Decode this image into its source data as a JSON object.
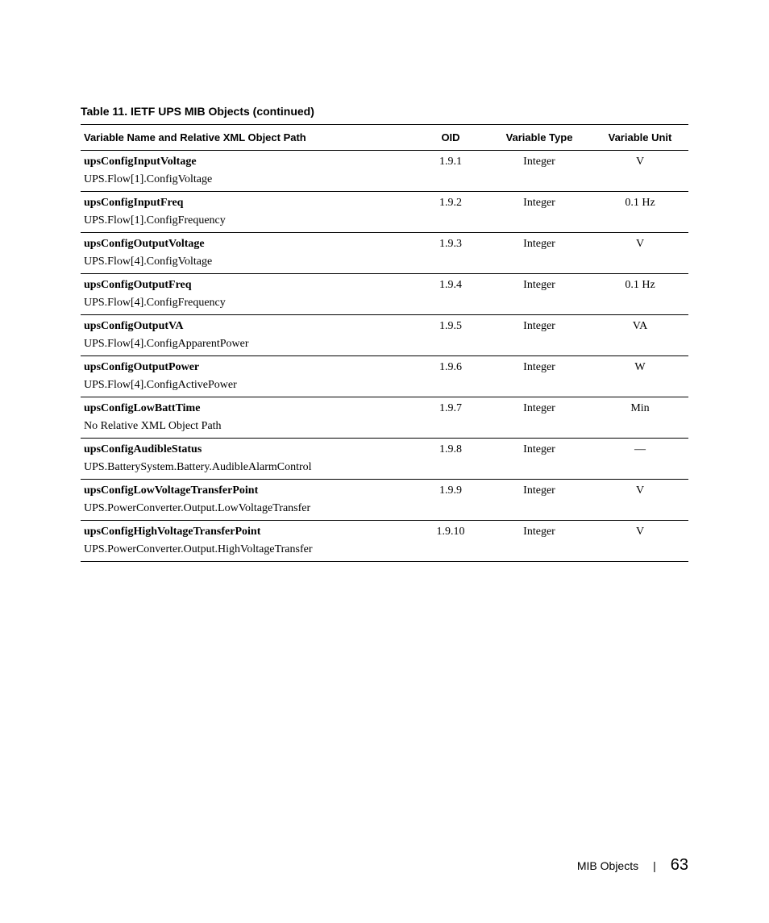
{
  "caption": "Table 11. IETF UPS MIB Objects (continued)",
  "headers": {
    "name": "Variable Name and Relative XML Object Path",
    "oid": "OID",
    "type": "Variable Type",
    "unit": "Variable Unit"
  },
  "rows": [
    {
      "name": "upsConfigInputVoltage",
      "path": "UPS.Flow[1].ConfigVoltage",
      "oid": "1.9.1",
      "type": "Integer",
      "unit": "V"
    },
    {
      "name": "upsConfigInputFreq",
      "path": "UPS.Flow[1].ConfigFrequency",
      "oid": "1.9.2",
      "type": "Integer",
      "unit": "0.1 Hz"
    },
    {
      "name": "upsConfigOutputVoltage",
      "path": "UPS.Flow[4].ConfigVoltage",
      "oid": "1.9.3",
      "type": "Integer",
      "unit": "V"
    },
    {
      "name": "upsConfigOutputFreq",
      "path": "UPS.Flow[4].ConfigFrequency",
      "oid": "1.9.4",
      "type": "Integer",
      "unit": "0.1 Hz"
    },
    {
      "name": "upsConfigOutputVA",
      "path": "UPS.Flow[4].ConfigApparentPower",
      "oid": "1.9.5",
      "type": "Integer",
      "unit": "VA"
    },
    {
      "name": "upsConfigOutputPower",
      "path": "UPS.Flow[4].ConfigActivePower",
      "oid": "1.9.6",
      "type": "Integer",
      "unit": "W"
    },
    {
      "name": "upsConfigLowBattTime",
      "path": "No Relative XML Object Path",
      "oid": "1.9.7",
      "type": "Integer",
      "unit": "Min"
    },
    {
      "name": "upsConfigAudibleStatus",
      "path": "UPS.BatterySystem.Battery.AudibleAlarmControl",
      "oid": "1.9.8",
      "type": "Integer",
      "unit": "—"
    },
    {
      "name": "upsConfigLowVoltageTransferPoint",
      "path": "UPS.PowerConverter.Output.LowVoltageTransfer",
      "oid": "1.9.9",
      "type": "Integer",
      "unit": "V"
    },
    {
      "name": "upsConfigHighVoltageTransferPoint",
      "path": "UPS.PowerConverter.Output.HighVoltageTransfer",
      "oid": "1.9.10",
      "type": "Integer",
      "unit": "V"
    }
  ],
  "footer": {
    "section": "MIB Objects",
    "separator": "|",
    "page": "63"
  }
}
